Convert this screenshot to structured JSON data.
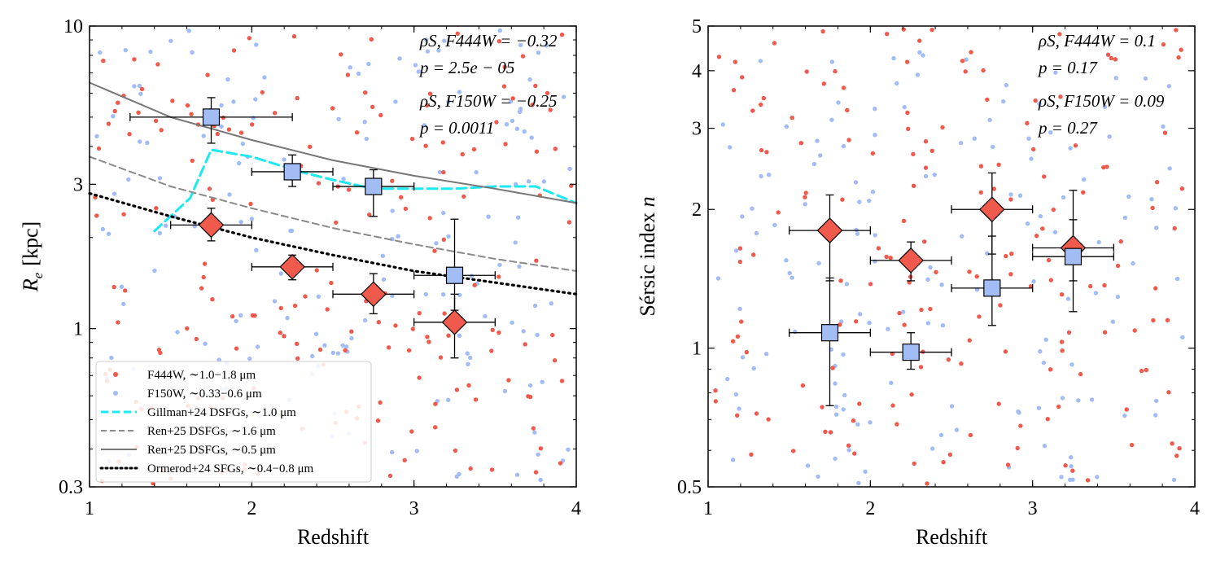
{
  "colors": {
    "f444w": "#ef5a4d",
    "f150w": "#a2bdf5",
    "gillman": "#1ee8f0",
    "ren_16": "#8a8a8a",
    "ren_05": "#777777",
    "ormerod": "#000000",
    "median_edge": "#000000"
  },
  "chart_data": [
    {
      "id": "left",
      "type": "scatter",
      "xlabel": "Redshift",
      "ylabel": "R_e [kpc]",
      "ylabel_parts": {
        "var": "R",
        "sub": "e",
        "unit": "[kpc]"
      },
      "xlim": [
        1,
        4
      ],
      "ylim": [
        0.3,
        10
      ],
      "yscale": "log",
      "xticks": [
        1,
        2,
        3,
        4
      ],
      "xtick_labels": [
        "1",
        "2",
        "3",
        "4"
      ],
      "yticks": [
        0.3,
        1,
        3,
        10
      ],
      "ytick_labels": [
        "0.3",
        "1",
        "3",
        "10"
      ],
      "annotations": [
        "ρS, F444W = −0.32",
        "p = 2.5e − 05",
        "ρS, F150W = −0.25",
        "p = 0.0011"
      ],
      "legend": {
        "position": "lower-left",
        "entries": [
          {
            "label": "F444W,  ∼1.0−1.8 μm",
            "style": "dot-red"
          },
          {
            "label": "F150W,  ∼0.33−0.6 μm",
            "style": "dot-blue"
          },
          {
            "label": "Gillman+24 DSFGs,  ∼1.0 μm",
            "style": "dash-cyan"
          },
          {
            "label": "Ren+25 DSFGs,  ∼1.6 μm",
            "style": "dash-gray"
          },
          {
            "label": "Ren+25 DSFGs,  ∼0.5 μm",
            "style": "solid-gray"
          },
          {
            "label": "Ormerod+24 SFGs,  ∼0.4−0.8 μm",
            "style": "dot-black"
          }
        ]
      },
      "lines": [
        {
          "name": "Gillman+24 DSFGs",
          "style": "dash-cyan",
          "x": [
            1.4,
            1.62,
            1.75,
            2.0,
            2.3,
            2.5,
            2.75,
            3.0,
            3.25,
            3.5,
            3.75,
            4.0
          ],
          "y": [
            2.1,
            2.7,
            3.9,
            3.7,
            3.3,
            3.1,
            2.9,
            2.9,
            2.9,
            2.95,
            2.95,
            2.6
          ]
        },
        {
          "name": "Ren+25 DSFGs 1.6um",
          "style": "dash-gray",
          "x": [
            1.0,
            1.5,
            2.0,
            2.5,
            3.0,
            3.5,
            4.0
          ],
          "y": [
            3.7,
            2.95,
            2.5,
            2.15,
            1.9,
            1.7,
            1.55
          ]
        },
        {
          "name": "Ren+25 DSFGs 0.5um",
          "style": "solid-gray",
          "x": [
            1.0,
            1.5,
            2.0,
            2.5,
            3.0,
            3.5,
            4.0
          ],
          "y": [
            6.5,
            5.0,
            4.2,
            3.6,
            3.2,
            2.9,
            2.6
          ]
        },
        {
          "name": "Ormerod+24 SFGs",
          "style": "dot-black",
          "x": [
            1.0,
            1.5,
            2.0,
            2.5,
            3.0,
            3.5,
            4.0
          ],
          "y": [
            2.8,
            2.35,
            2.0,
            1.75,
            1.55,
            1.42,
            1.3
          ]
        }
      ],
      "medians_f444w": [
        {
          "x": 1.75,
          "y": 2.2,
          "xerr": 0.25,
          "yerr_lo": 1.95,
          "yerr_hi": 2.5
        },
        {
          "x": 2.25,
          "y": 1.6,
          "xerr": 0.25,
          "yerr_lo": 1.45,
          "yerr_hi": 1.75
        },
        {
          "x": 2.75,
          "y": 1.3,
          "xerr": 0.25,
          "yerr_lo": 1.12,
          "yerr_hi": 1.52
        },
        {
          "x": 3.25,
          "y": 1.05,
          "xerr": 0.25,
          "yerr_lo": 0.8,
          "yerr_hi": 1.3
        }
      ],
      "medians_f150w": [
        {
          "x": 1.75,
          "y": 5.0,
          "xerr": 0.5,
          "yerr_lo": 4.1,
          "yerr_hi": 5.8
        },
        {
          "x": 2.25,
          "y": 3.3,
          "xerr": 0.25,
          "yerr_lo": 2.95,
          "yerr_hi": 3.75
        },
        {
          "x": 2.75,
          "y": 2.95,
          "xerr": 0.25,
          "yerr_lo": 2.35,
          "yerr_hi": 3.35
        },
        {
          "x": 3.25,
          "y": 1.5,
          "xerr": 0.25,
          "yerr_lo": 1.15,
          "yerr_hi": 2.3
        }
      ]
    },
    {
      "id": "right",
      "type": "scatter",
      "xlabel": "Redshift",
      "ylabel": "Sérsic index n",
      "ylabel_parts": {
        "text": "Sérsic index ",
        "var": "n"
      },
      "xlim": [
        1,
        4
      ],
      "ylim": [
        0.5,
        5
      ],
      "yscale": "log",
      "xticks": [
        1,
        2,
        3,
        4
      ],
      "xtick_labels": [
        "1",
        "2",
        "3",
        "4"
      ],
      "yticks": [
        0.5,
        1,
        2,
        3,
        4,
        5
      ],
      "ytick_labels": [
        "0.5",
        "1",
        "2",
        "3",
        "4",
        "5"
      ],
      "annotations": [
        "ρS, F444W = 0.1",
        "p = 0.17",
        "ρS, F150W = 0.09",
        "p = 0.27"
      ],
      "medians_f444w": [
        {
          "x": 1.75,
          "y": 1.8,
          "xerr": 0.25,
          "yerr_lo": 1.4,
          "yerr_hi": 2.15
        },
        {
          "x": 2.25,
          "y": 1.55,
          "xerr": 0.25,
          "yerr_lo": 1.4,
          "yerr_hi": 1.7
        },
        {
          "x": 2.75,
          "y": 2.0,
          "xerr": 0.25,
          "yerr_lo": 1.6,
          "yerr_hi": 2.4
        },
        {
          "x": 3.25,
          "y": 1.65,
          "xerr": 0.25,
          "yerr_lo": 1.4,
          "yerr_hi": 1.9
        }
      ],
      "medians_f150w": [
        {
          "x": 1.75,
          "y": 1.08,
          "xerr": 0.25,
          "yerr_lo": 0.75,
          "yerr_hi": 1.42
        },
        {
          "x": 2.25,
          "y": 0.98,
          "xerr": 0.25,
          "yerr_lo": 0.9,
          "yerr_hi": 1.08
        },
        {
          "x": 2.75,
          "y": 1.35,
          "xerr": 0.25,
          "yerr_lo": 1.12,
          "yerr_hi": 1.75
        },
        {
          "x": 3.25,
          "y": 1.58,
          "xerr": 0.25,
          "yerr_lo": 1.2,
          "yerr_hi": 2.2
        }
      ]
    }
  ]
}
